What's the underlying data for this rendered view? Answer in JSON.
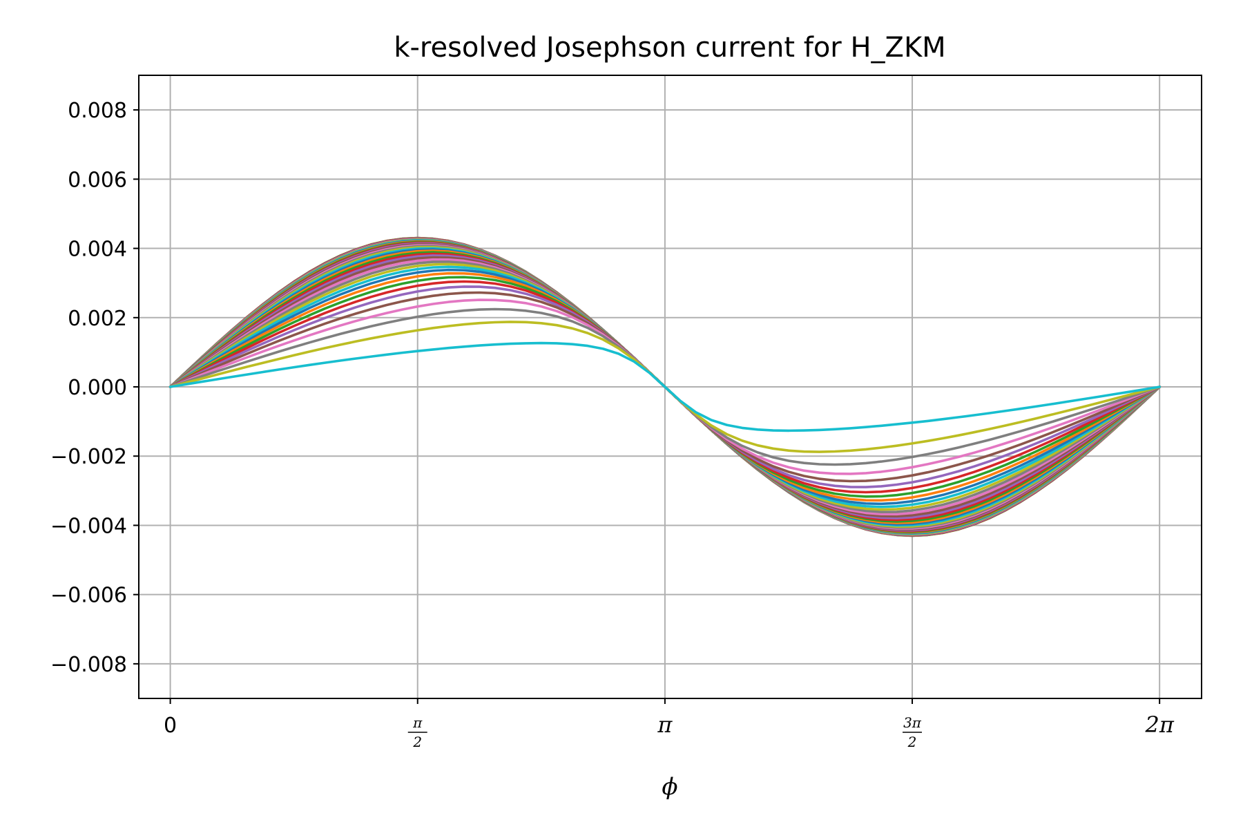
{
  "chart_data": {
    "type": "line",
    "title": "k-resolved Josephson current for H_ZKM",
    "xlabel": "ϕ",
    "ylabel": "",
    "xlim": [
      -0.2,
      6.55
    ],
    "ylim": [
      -0.009,
      0.009
    ],
    "grid": true,
    "legend": "none",
    "x_ticks": [
      {
        "value": 0,
        "label": "0"
      },
      {
        "value": 1.5708,
        "label_num": "π",
        "label_den": "2"
      },
      {
        "value": 3.1416,
        "label": "π"
      },
      {
        "value": 4.7124,
        "label_num": "3π",
        "label_den": "2"
      },
      {
        "value": 6.2832,
        "label": "2π"
      }
    ],
    "y_ticks": [
      {
        "value": 0.008,
        "label": "0.008"
      },
      {
        "value": 0.006,
        "label": "0.006"
      },
      {
        "value": 0.004,
        "label": "0.004"
      },
      {
        "value": 0.002,
        "label": "0.002"
      },
      {
        "value": 0.0,
        "label": "0.000"
      },
      {
        "value": -0.002,
        "label": "−0.002"
      },
      {
        "value": -0.004,
        "label": "−0.004"
      },
      {
        "value": -0.006,
        "label": "−0.006"
      },
      {
        "value": -0.008,
        "label": "−0.008"
      }
    ],
    "x": [
      0,
      0.0982,
      0.1963,
      0.2945,
      0.3927,
      0.4909,
      0.589,
      0.6872,
      0.7854,
      0.8836,
      0.9817,
      1.0799,
      1.1781,
      1.2763,
      1.3744,
      1.4726,
      1.5708,
      1.669,
      1.7671,
      1.8653,
      1.9635,
      2.0617,
      2.1598,
      2.258,
      2.3562,
      2.4544,
      2.5525,
      2.6507,
      2.7489,
      2.8471,
      2.9452,
      3.0434,
      3.1416,
      3.2398,
      3.3379,
      3.4361,
      3.5343,
      3.6325,
      3.7306,
      3.8288,
      3.927,
      4.0252,
      4.1233,
      4.2215,
      4.3197,
      4.4179,
      4.516,
      4.6142,
      4.7124,
      4.8106,
      4.9087,
      5.0069,
      5.1051,
      5.2033,
      5.3014,
      5.3996,
      5.4978,
      5.596,
      5.6941,
      5.7923,
      5.8905,
      5.9887,
      6.0868,
      6.185,
      6.2832
    ],
    "x_note": "",
    "series_parameter": {
      "t_min": 0.02,
      "t_max": 0.985,
      "count": 40
    },
    "series_colors": [
      "#1f77b4",
      "#ff7f0e",
      "#2ca02c",
      "#d62728",
      "#9467bd",
      "#8c564b",
      "#e377c2",
      "#7f7f7f",
      "#bcbd22",
      "#17becf"
    ],
    "series": []
  }
}
